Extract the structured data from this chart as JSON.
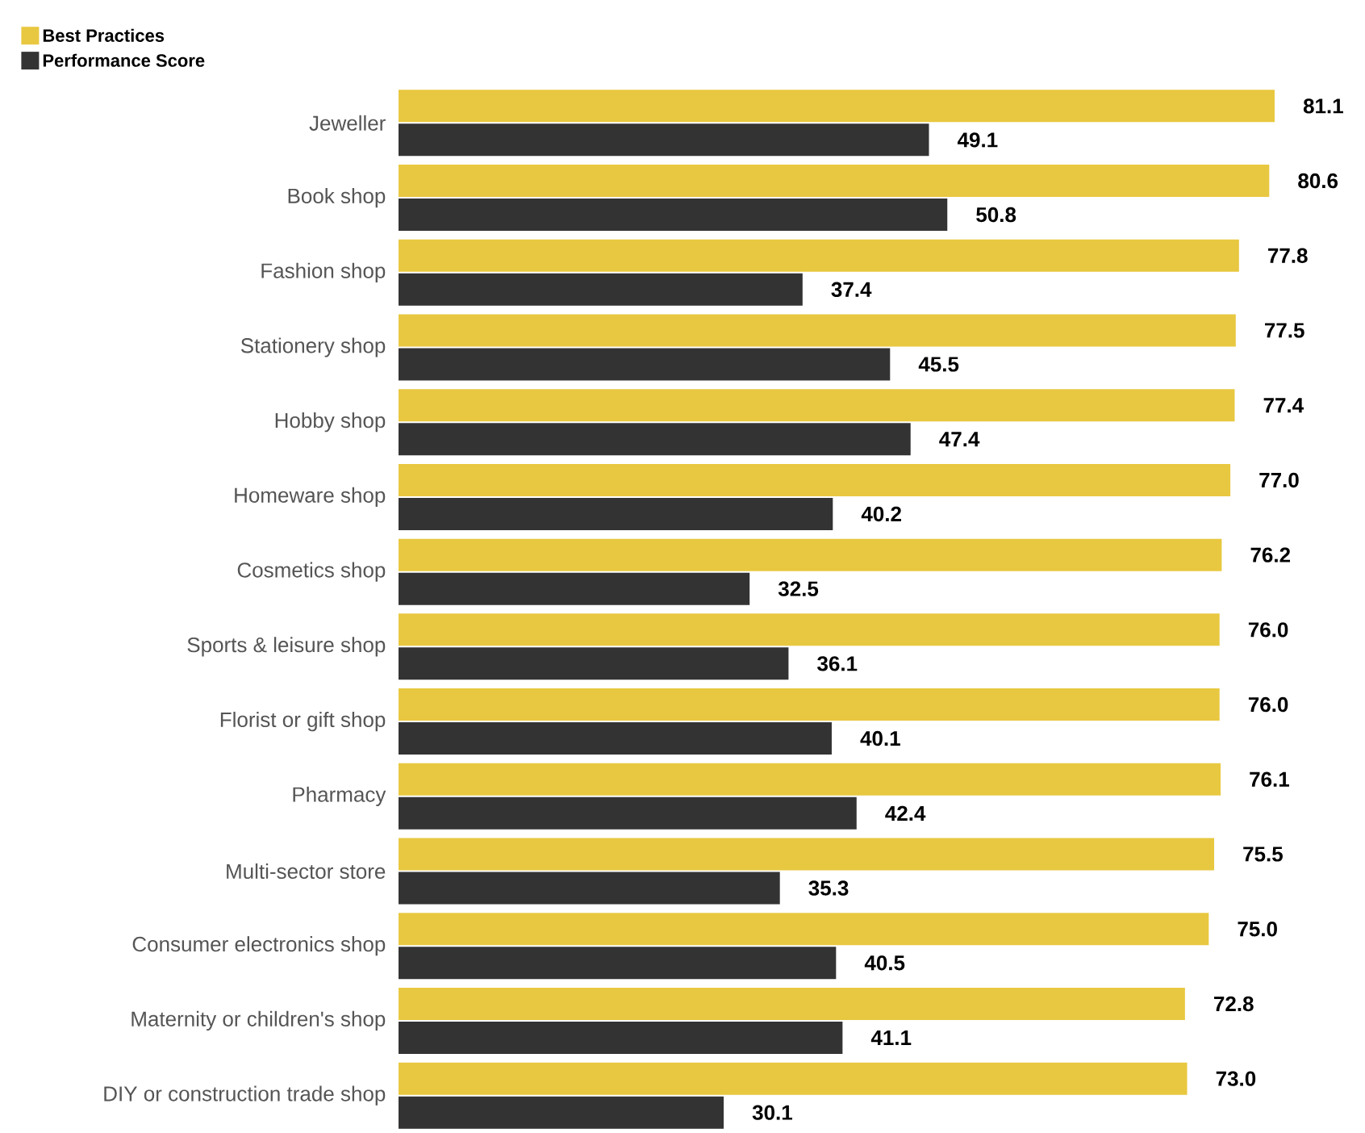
{
  "chart_data": {
    "type": "bar",
    "orientation": "horizontal",
    "legend": "top left",
    "grid": false,
    "tick_labels": "y",
    "categories": [
      "Jeweller",
      "Book shop",
      "Fashion shop",
      "Stationery shop",
      "Hobby shop",
      "Homeware shop",
      "Cosmetics shop",
      "Sports & leisure shop",
      "Florist or gift shop",
      "Pharmacy",
      "Multi-sector store",
      "Consumer electronics shop",
      "Maternity or children's shop",
      "DIY or construction trade shop"
    ],
    "series": [
      {
        "name": "Best Practices",
        "color": "#e8c840",
        "values": [
          81.1,
          80.6,
          77.8,
          77.5,
          77.4,
          77.0,
          76.2,
          76.0,
          76.0,
          76.1,
          75.5,
          75.0,
          72.8,
          73.0
        ],
        "value_labels": [
          "81.1",
          "80.6",
          "77.8",
          "77.5",
          "77.4",
          "77.0",
          "76.2",
          "76.0",
          "76.0",
          "76.1",
          "75.5",
          "75.0",
          "72.8",
          "73.0"
        ]
      },
      {
        "name": "Performance Score",
        "color": "#333333",
        "values": [
          49.1,
          50.8,
          37.4,
          45.5,
          47.4,
          40.2,
          32.5,
          36.1,
          40.1,
          42.4,
          35.3,
          40.5,
          41.1,
          30.1
        ],
        "value_labels": [
          "49.1",
          "50.8",
          "37.4",
          "45.5",
          "47.4",
          "40.2",
          "32.5",
          "36.1",
          "40.1",
          "42.4",
          "35.3",
          "40.5",
          "41.1",
          "30.1"
        ]
      }
    ]
  }
}
